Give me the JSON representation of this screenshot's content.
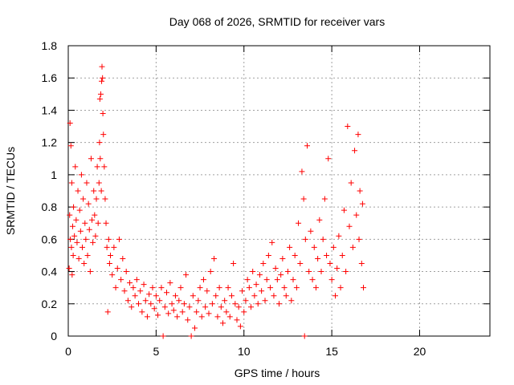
{
  "chart_data": {
    "type": "scatter",
    "title": "Day 068 of 2026, SRMTID for receiver vars",
    "xlabel": "GPS time / hours",
    "ylabel": "SRMTID / TECUs",
    "xlim": [
      0,
      24
    ],
    "ylim": [
      0,
      1.8
    ],
    "x_ticks": [
      0,
      5,
      10,
      15,
      20
    ],
    "x_tick_labels": [
      "0",
      "5",
      "10",
      "15",
      "20"
    ],
    "y_ticks": [
      0,
      0.2,
      0.4,
      0.6,
      0.8,
      1.0,
      1.2,
      1.4,
      1.6,
      1.8
    ],
    "y_tick_labels": [
      "0",
      "0.2",
      "0.4",
      "0.6",
      "0.8",
      "1",
      "1.2",
      "1.4",
      "1.6",
      "1.8"
    ],
    "grid": true,
    "marker": "plus",
    "series": [
      {
        "name": "SRMTID",
        "color": "#ff0000",
        "points": [
          [
            0.05,
            0.42
          ],
          [
            0.08,
            0.75
          ],
          [
            0.1,
            1.32
          ],
          [
            0.12,
            0.6
          ],
          [
            0.15,
            1.18
          ],
          [
            0.18,
            0.55
          ],
          [
            0.2,
            0.95
          ],
          [
            0.22,
            0.38
          ],
          [
            0.25,
            0.68
          ],
          [
            0.28,
            0.5
          ],
          [
            0.3,
            0.8
          ],
          [
            0.35,
            0.62
          ],
          [
            0.4,
            1.05
          ],
          [
            0.45,
            0.72
          ],
          [
            0.5,
            0.58
          ],
          [
            0.55,
            0.9
          ],
          [
            0.6,
            0.48
          ],
          [
            0.65,
            0.78
          ],
          [
            0.7,
            0.65
          ],
          [
            0.75,
            1.0
          ],
          [
            0.8,
            0.55
          ],
          [
            0.85,
            0.85
          ],
          [
            0.9,
            0.45
          ],
          [
            0.95,
            0.7
          ],
          [
            1.0,
            0.6
          ],
          [
            1.05,
            0.95
          ],
          [
            1.1,
            0.5
          ],
          [
            1.15,
            0.82
          ],
          [
            1.2,
            0.66
          ],
          [
            1.25,
            0.4
          ],
          [
            1.3,
            1.1
          ],
          [
            1.35,
            0.72
          ],
          [
            1.4,
            0.58
          ],
          [
            1.45,
            0.9
          ],
          [
            1.5,
            0.75
          ],
          [
            1.55,
            0.62
          ],
          [
            1.6,
            0.85
          ],
          [
            1.65,
            1.05
          ],
          [
            1.7,
            0.7
          ],
          [
            1.75,
            0.95
          ],
          [
            1.78,
            1.2
          ],
          [
            1.8,
            1.47
          ],
          [
            1.82,
            1.1
          ],
          [
            1.85,
            1.5
          ],
          [
            1.88,
            0.9
          ],
          [
            1.9,
            1.58
          ],
          [
            1.92,
            1.67
          ],
          [
            1.95,
            1.6
          ],
          [
            1.97,
            1.38
          ],
          [
            2.0,
            1.25
          ],
          [
            2.05,
            1.05
          ],
          [
            2.1,
            0.85
          ],
          [
            2.15,
            0.7
          ],
          [
            2.2,
            0.55
          ],
          [
            2.25,
            0.15
          ],
          [
            2.3,
            0.6
          ],
          [
            2.35,
            0.45
          ],
          [
            2.4,
            0.5
          ],
          [
            2.5,
            0.38
          ],
          [
            2.6,
            0.55
          ],
          [
            2.7,
            0.3
          ],
          [
            2.8,
            0.42
          ],
          [
            2.9,
            0.6
          ],
          [
            3.0,
            0.35
          ],
          [
            3.1,
            0.48
          ],
          [
            3.2,
            0.28
          ],
          [
            3.3,
            0.4
          ],
          [
            3.4,
            0.22
          ],
          [
            3.5,
            0.33
          ],
          [
            3.6,
            0.18
          ],
          [
            3.7,
            0.3
          ],
          [
            3.8,
            0.25
          ],
          [
            3.9,
            0.35
          ],
          [
            4.0,
            0.2
          ],
          [
            4.1,
            0.28
          ],
          [
            4.2,
            0.15
          ],
          [
            4.3,
            0.32
          ],
          [
            4.4,
            0.22
          ],
          [
            4.5,
            0.12
          ],
          [
            4.6,
            0.26
          ],
          [
            4.7,
            0.2
          ],
          [
            4.8,
            0.3
          ],
          [
            4.9,
            0.17
          ],
          [
            5.0,
            0.25
          ],
          [
            5.1,
            0.13
          ],
          [
            5.2,
            0.22
          ],
          [
            5.3,
            0.3
          ],
          [
            5.4,
            0.0
          ],
          [
            5.5,
            0.18
          ],
          [
            5.6,
            0.27
          ],
          [
            5.7,
            0.14
          ],
          [
            5.8,
            0.33
          ],
          [
            5.9,
            0.2
          ],
          [
            6.0,
            0.16
          ],
          [
            6.1,
            0.25
          ],
          [
            6.2,
            0.12
          ],
          [
            6.3,
            0.22
          ],
          [
            6.4,
            0.3
          ],
          [
            6.5,
            0.15
          ],
          [
            6.6,
            0.2
          ],
          [
            6.7,
            0.38
          ],
          [
            6.8,
            0.1
          ],
          [
            6.9,
            0.18
          ],
          [
            7.0,
            0.0
          ],
          [
            7.1,
            0.25
          ],
          [
            7.2,
            0.05
          ],
          [
            7.3,
            0.15
          ],
          [
            7.4,
            0.22
          ],
          [
            7.5,
            0.3
          ],
          [
            7.6,
            0.12
          ],
          [
            7.7,
            0.35
          ],
          [
            7.8,
            0.18
          ],
          [
            7.9,
            0.28
          ],
          [
            8.0,
            0.14
          ],
          [
            8.1,
            0.4
          ],
          [
            8.2,
            0.2
          ],
          [
            8.3,
            0.48
          ],
          [
            8.4,
            0.25
          ],
          [
            8.5,
            0.12
          ],
          [
            8.6,
            0.3
          ],
          [
            8.7,
            0.18
          ],
          [
            8.8,
            0.08
          ],
          [
            8.9,
            0.22
          ],
          [
            9.0,
            0.15
          ],
          [
            9.1,
            0.3
          ],
          [
            9.2,
            0.12
          ],
          [
            9.3,
            0.25
          ],
          [
            9.4,
            0.45
          ],
          [
            9.5,
            0.2
          ],
          [
            9.6,
            0.1
          ],
          [
            9.7,
            0.18
          ],
          [
            9.8,
            0.06
          ],
          [
            9.9,
            0.28
          ],
          [
            10.0,
            0.15
          ],
          [
            10.1,
            0.22
          ],
          [
            10.2,
            0.35
          ],
          [
            10.3,
            0.3
          ],
          [
            10.4,
            0.18
          ],
          [
            10.5,
            0.4
          ],
          [
            10.6,
            0.25
          ],
          [
            10.7,
            0.32
          ],
          [
            10.8,
            0.2
          ],
          [
            10.9,
            0.38
          ],
          [
            11.0,
            0.28
          ],
          [
            11.1,
            0.45
          ],
          [
            11.2,
            0.22
          ],
          [
            11.3,
            0.35
          ],
          [
            11.4,
            0.5
          ],
          [
            11.5,
            0.3
          ],
          [
            11.6,
            0.58
          ],
          [
            11.7,
            0.25
          ],
          [
            11.8,
            0.42
          ],
          [
            11.9,
            0.35
          ],
          [
            12.0,
            0.2
          ],
          [
            12.1,
            0.38
          ],
          [
            12.2,
            0.48
          ],
          [
            12.3,
            0.3
          ],
          [
            12.4,
            0.25
          ],
          [
            12.5,
            0.4
          ],
          [
            12.6,
            0.55
          ],
          [
            12.7,
            0.22
          ],
          [
            12.8,
            0.35
          ],
          [
            12.9,
            0.5
          ],
          [
            13.0,
            0.3
          ],
          [
            13.1,
            0.7
          ],
          [
            13.2,
            0.45
          ],
          [
            13.3,
            1.02
          ],
          [
            13.4,
            0.85
          ],
          [
            13.45,
            0.0
          ],
          [
            13.5,
            0.6
          ],
          [
            13.6,
            1.18
          ],
          [
            13.7,
            0.4
          ],
          [
            13.8,
            0.65
          ],
          [
            13.9,
            0.35
          ],
          [
            14.0,
            0.55
          ],
          [
            14.1,
            0.3
          ],
          [
            14.2,
            0.48
          ],
          [
            14.3,
            0.72
          ],
          [
            14.4,
            0.4
          ],
          [
            14.5,
            0.6
          ],
          [
            14.6,
            0.85
          ],
          [
            14.7,
            0.5
          ],
          [
            14.8,
            1.1
          ],
          [
            14.9,
            0.45
          ],
          [
            15.0,
            0.35
          ],
          [
            15.1,
            0.55
          ],
          [
            15.2,
            0.25
          ],
          [
            15.3,
            0.42
          ],
          [
            15.4,
            0.62
          ],
          [
            15.5,
            0.3
          ],
          [
            15.6,
            0.5
          ],
          [
            15.7,
            0.78
          ],
          [
            15.8,
            0.4
          ],
          [
            15.9,
            1.3
          ],
          [
            16.0,
            0.68
          ],
          [
            16.1,
            0.95
          ],
          [
            16.2,
            0.55
          ],
          [
            16.3,
            1.15
          ],
          [
            16.4,
            0.75
          ],
          [
            16.5,
            1.25
          ],
          [
            16.55,
            0.6
          ],
          [
            16.6,
            0.9
          ],
          [
            16.7,
            0.45
          ],
          [
            16.75,
            0.82
          ],
          [
            16.8,
            0.3
          ]
        ]
      }
    ]
  }
}
